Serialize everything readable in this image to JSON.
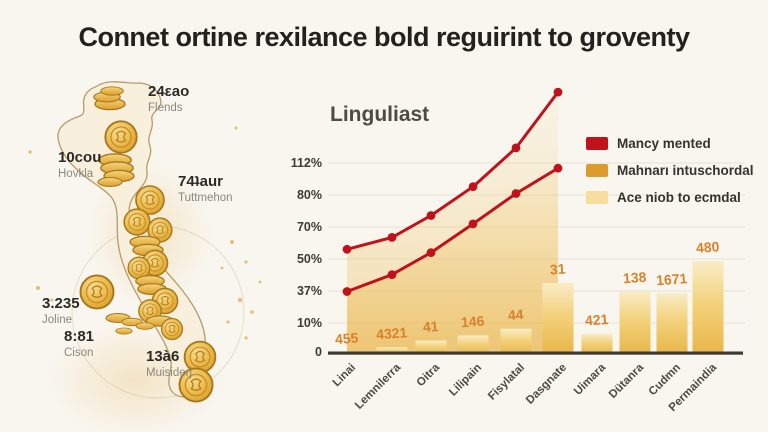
{
  "title": "Connet ortine rexilance bold reguirint to groventy",
  "map": {
    "callouts": [
      {
        "value": "24εao",
        "name": "Flends"
      },
      {
        "value": "10cou",
        "name": "Hovkla"
      },
      {
        "value": "74ʇaur",
        "name": "Tuttmehon"
      },
      {
        "value": "3.235",
        "name": "Joline"
      },
      {
        "value": "8:81",
        "name": "Cison"
      },
      {
        "value": "13à6",
        "name": "Muisiderj"
      }
    ]
  },
  "chart_data": {
    "type": "composite: bar + 2 red marker lines",
    "title": "Linguliast",
    "categories": [
      "Linai",
      "Lemnilerra",
      "Oitra",
      "Lilipain",
      "Fisylatal",
      "Dasgnate",
      "Uimara",
      "Dütanra",
      "Cudmn",
      "Permaindia"
    ],
    "bars": {
      "legend": "Ace niob to ecmdal",
      "value_labels": [
        "455",
        "4321",
        "41",
        "146",
        "44",
        "31",
        "421",
        "138",
        "1671",
        "480"
      ],
      "values_pct": [
        1,
        4,
        8,
        11,
        15,
        42,
        12,
        37,
        36,
        55
      ]
    },
    "lines": [
      {
        "name": "Mancy mented",
        "color": "#c1121c",
        "values_pct": [
          62,
          69,
          82,
          99,
          122,
          155
        ]
      },
      {
        "name": "Mahnarı intuschordal",
        "color": "#c1121c",
        "values_pct": [
          37,
          47,
          60,
          77,
          95,
          110
        ]
      }
    ],
    "y_ticks": [
      "112%",
      "80%",
      "70%",
      "50%",
      "37%",
      "10%",
      "0"
    ],
    "ylim": [
      0,
      161
    ],
    "grid": "horizontal only",
    "legend_position": "right",
    "legend": [
      {
        "label": "Mancy mented",
        "color": "#c2131c"
      },
      {
        "label": "Mahnarı intuschordal",
        "color": "#dd9b2e"
      },
      {
        "label": "Ace niob to ecmdal",
        "color": "#f7dd9b"
      }
    ]
  },
  "colors": {
    "background": "#f9f6ef",
    "title_text": "#22211e",
    "line_red": "#c1121c",
    "bar_gold": "#e9b649",
    "bar_label_orange": "#d9822b",
    "map_outline": "#b69b6c",
    "coin_gold": "#e2a62e"
  }
}
